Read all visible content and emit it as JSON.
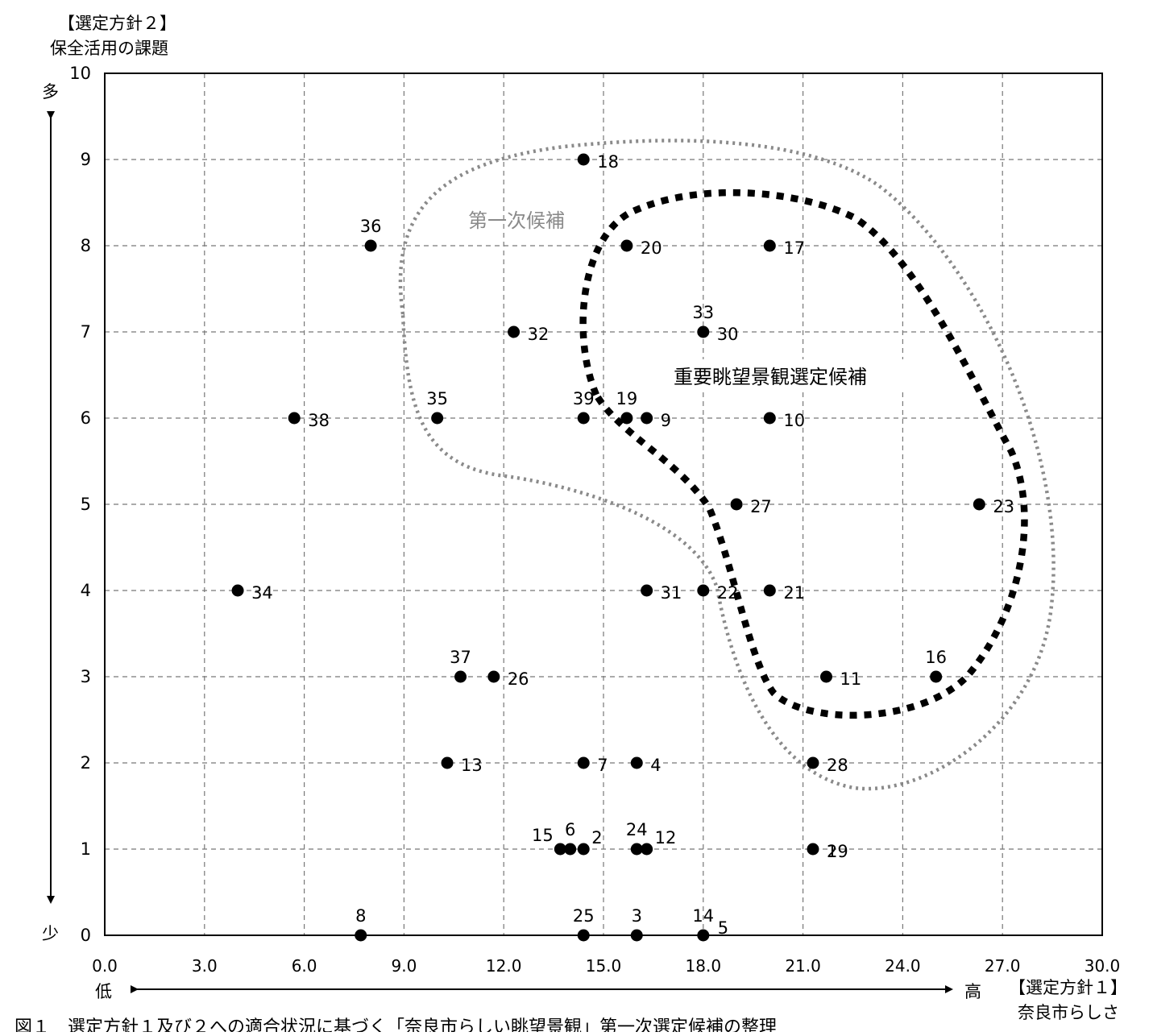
{
  "chart_data": {
    "type": "scatter",
    "y_axis_title": [
      "【選定方針２】",
      "保全活用の課題"
    ],
    "x_axis_title": [
      "【選定方針１】",
      "奈良市らしさ"
    ],
    "y_high_label": "多",
    "y_low_label": "少",
    "x_low_label": "低",
    "x_high_label": "高",
    "xlim": [
      0,
      30
    ],
    "ylim": [
      0,
      10
    ],
    "x_ticks": [
      "0.0",
      "3.0",
      "6.0",
      "9.0",
      "12.0",
      "15.0",
      "18.0",
      "21.0",
      "24.0",
      "27.0",
      "30.0"
    ],
    "y_ticks": [
      "0",
      "1",
      "2",
      "3",
      "4",
      "5",
      "6",
      "7",
      "8",
      "9",
      "10"
    ],
    "grid": true,
    "points": [
      {
        "id": "18",
        "x": 14.4,
        "y": 9
      },
      {
        "id": "36",
        "x": 8.0,
        "y": 8
      },
      {
        "id": "20",
        "x": 15.7,
        "y": 8
      },
      {
        "id": "17",
        "x": 20.0,
        "y": 8
      },
      {
        "id": "32",
        "x": 12.3,
        "y": 7
      },
      {
        "id": "33",
        "x": 18.0,
        "y": 7
      },
      {
        "id": "30",
        "x": 18.0,
        "y": 7
      },
      {
        "id": "38",
        "x": 5.7,
        "y": 6
      },
      {
        "id": "35",
        "x": 10.0,
        "y": 6
      },
      {
        "id": "39",
        "x": 14.4,
        "y": 6
      },
      {
        "id": "19",
        "x": 15.7,
        "y": 6
      },
      {
        "id": "9",
        "x": 16.3,
        "y": 6
      },
      {
        "id": "10",
        "x": 20.0,
        "y": 6
      },
      {
        "id": "27",
        "x": 19.0,
        "y": 5
      },
      {
        "id": "23",
        "x": 26.3,
        "y": 5
      },
      {
        "id": "34",
        "x": 4.0,
        "y": 4
      },
      {
        "id": "31",
        "x": 16.3,
        "y": 4
      },
      {
        "id": "22",
        "x": 18.0,
        "y": 4
      },
      {
        "id": "21",
        "x": 20.0,
        "y": 4
      },
      {
        "id": "37",
        "x": 10.7,
        "y": 3
      },
      {
        "id": "26",
        "x": 11.7,
        "y": 3
      },
      {
        "id": "11",
        "x": 21.7,
        "y": 3
      },
      {
        "id": "16",
        "x": 25.0,
        "y": 3
      },
      {
        "id": "13",
        "x": 10.3,
        "y": 2
      },
      {
        "id": "7",
        "x": 14.4,
        "y": 2
      },
      {
        "id": "4",
        "x": 16.0,
        "y": 2
      },
      {
        "id": "28",
        "x": 21.3,
        "y": 2
      },
      {
        "id": "15",
        "x": 13.7,
        "y": 1
      },
      {
        "id": "6",
        "x": 14.0,
        "y": 1
      },
      {
        "id": "2",
        "x": 14.4,
        "y": 1
      },
      {
        "id": "24",
        "x": 16.0,
        "y": 1
      },
      {
        "id": "12",
        "x": 16.3,
        "y": 1
      },
      {
        "id": "1",
        "x": 21.3,
        "y": 1
      },
      {
        "id": "29",
        "x": 21.3,
        "y": 1
      },
      {
        "id": "8",
        "x": 7.7,
        "y": 0
      },
      {
        "id": "25",
        "x": 14.4,
        "y": 0
      },
      {
        "id": "3",
        "x": 16.0,
        "y": 0
      },
      {
        "id": "14",
        "x": 18.0,
        "y": 0
      },
      {
        "id": "5",
        "x": 18.0,
        "y": 0
      }
    ],
    "regions": [
      {
        "label": "第一次候補",
        "style": "dotted",
        "color": "#8a8a8a"
      },
      {
        "label": "重要眺望景観選定候補",
        "style": "dotted-bold",
        "color": "#000000"
      }
    ],
    "caption": "図１　選定方針１及び２への適合状況に基づく「奈良市らしい眺望景観」第一次選定候補の整理"
  }
}
